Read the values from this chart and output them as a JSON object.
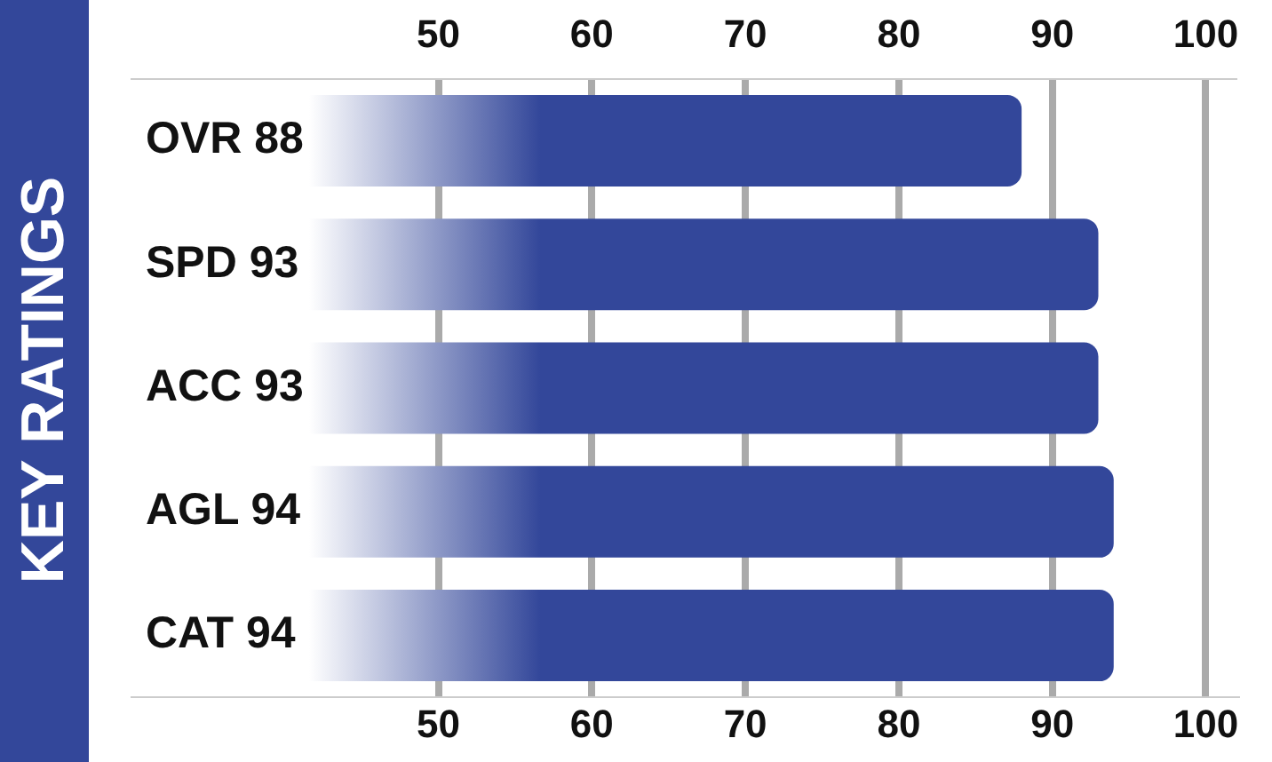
{
  "chart_data": {
    "type": "bar",
    "orientation": "horizontal",
    "title": "KEY RATINGS",
    "categories": [
      "OVR 88",
      "SPD 93",
      "ACC 93",
      "AGL 94",
      "CAT 94"
    ],
    "values": [
      88,
      93,
      93,
      94,
      94
    ],
    "color": "#33479a",
    "xlim": [
      30,
      102
    ],
    "xticks": [
      50,
      60,
      70,
      80,
      90,
      100
    ],
    "x2lim": [
      30,
      102
    ],
    "x2ticks": [
      50,
      60,
      70,
      80,
      90,
      100
    ],
    "grid": "x",
    "legend": false
  }
}
